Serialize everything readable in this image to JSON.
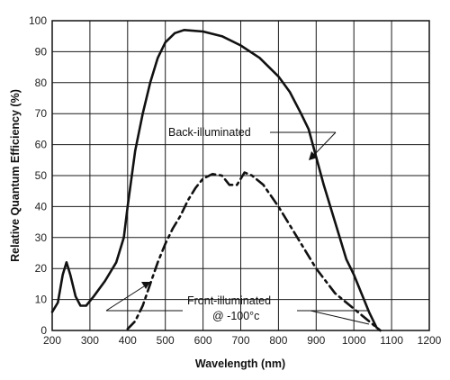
{
  "chart_data": {
    "type": "line",
    "xlabel": "Wavelength (nm)",
    "ylabel": "Relative Quantum Efficiency (%)",
    "xlim": [
      200,
      1200
    ],
    "ylim": [
      0,
      100
    ],
    "grid": true,
    "x_ticks": [
      200,
      300,
      400,
      500,
      600,
      700,
      800,
      900,
      1000,
      1100,
      1200
    ],
    "y_ticks": [
      0,
      10,
      20,
      30,
      40,
      50,
      60,
      70,
      80,
      90,
      100
    ],
    "series": [
      {
        "name": "Back-illuminated",
        "style": "solid",
        "points": [
          [
            200,
            6
          ],
          [
            215,
            9
          ],
          [
            228,
            18
          ],
          [
            238,
            22
          ],
          [
            248,
            18
          ],
          [
            262,
            11
          ],
          [
            275,
            8
          ],
          [
            290,
            8
          ],
          [
            310,
            11
          ],
          [
            340,
            16
          ],
          [
            370,
            22
          ],
          [
            390,
            30
          ],
          [
            400,
            40
          ],
          [
            420,
            58
          ],
          [
            440,
            70
          ],
          [
            460,
            80
          ],
          [
            480,
            88
          ],
          [
            500,
            93
          ],
          [
            525,
            96
          ],
          [
            550,
            97
          ],
          [
            600,
            96.5
          ],
          [
            650,
            95
          ],
          [
            700,
            92
          ],
          [
            750,
            88
          ],
          [
            800,
            82
          ],
          [
            830,
            77
          ],
          [
            860,
            70
          ],
          [
            880,
            65
          ],
          [
            900,
            56
          ],
          [
            920,
            47
          ],
          [
            950,
            35
          ],
          [
            980,
            23
          ],
          [
            1000,
            18
          ],
          [
            1020,
            12
          ],
          [
            1040,
            6
          ],
          [
            1060,
            1
          ],
          [
            1070,
            0
          ]
        ]
      },
      {
        "name": "Front-illuminated @ -100°c",
        "style": "dashdot",
        "points": [
          [
            400,
            0.5
          ],
          [
            420,
            3
          ],
          [
            440,
            8
          ],
          [
            460,
            15
          ],
          [
            480,
            22
          ],
          [
            500,
            28
          ],
          [
            520,
            33
          ],
          [
            540,
            37
          ],
          [
            560,
            42
          ],
          [
            580,
            46
          ],
          [
            600,
            49
          ],
          [
            625,
            50.5
          ],
          [
            650,
            50
          ],
          [
            670,
            47
          ],
          [
            690,
            47
          ],
          [
            710,
            51
          ],
          [
            730,
            50
          ],
          [
            760,
            47
          ],
          [
            800,
            40
          ],
          [
            850,
            30
          ],
          [
            900,
            20
          ],
          [
            950,
            12
          ],
          [
            1000,
            7
          ],
          [
            1050,
            2
          ],
          [
            1070,
            0
          ]
        ]
      }
    ],
    "annotations": [
      {
        "text": "Back-illuminated"
      },
      {
        "text": "Front-illuminated",
        "line2": "@ -100°c"
      }
    ]
  }
}
